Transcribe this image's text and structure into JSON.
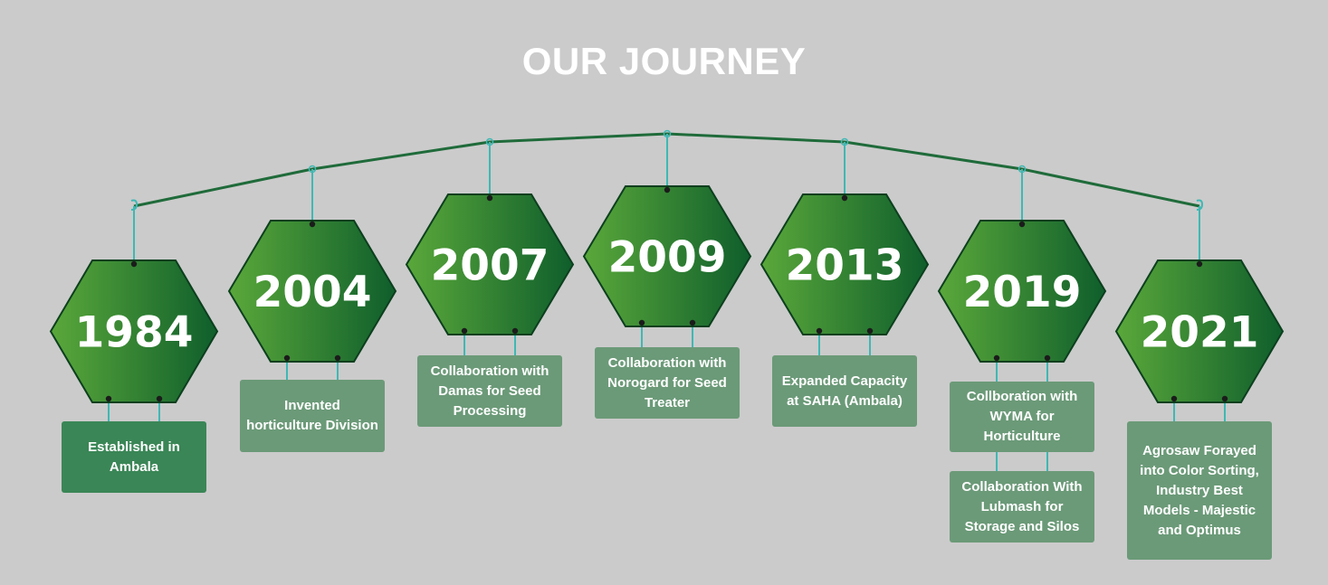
{
  "title": "OUR JOURNEY",
  "colors": {
    "background": "#cbcbcb",
    "arc_line": "#1f6b3a",
    "connector": "#3fb8b4",
    "hex_dark": "#0f5e2c",
    "hex_light": "#5aa83a",
    "card_dark": "#3a8656",
    "card_light": "#6b9a78"
  },
  "milestones": [
    {
      "year": "1984",
      "cards": [
        "Established in Ambala"
      ]
    },
    {
      "year": "2004",
      "cards": [
        "Invented horticulture Division"
      ]
    },
    {
      "year": "2007",
      "cards": [
        "Collaboration with Damas for Seed Processing"
      ]
    },
    {
      "year": "2009",
      "cards": [
        "Collaboration with Norogard for Seed Treater"
      ]
    },
    {
      "year": "2013",
      "cards": [
        "Expanded Capacity at SAHA (Ambala)"
      ]
    },
    {
      "year": "2019",
      "cards": [
        "Collboration  with WYMA for Horticulture",
        "Collaboration With Lubmash for Storage and Silos"
      ]
    },
    {
      "year": "2021",
      "cards": [
        "Agrosaw Forayed into Color Sorting, Industry Best Models - Majestic and Optimus"
      ]
    }
  ]
}
